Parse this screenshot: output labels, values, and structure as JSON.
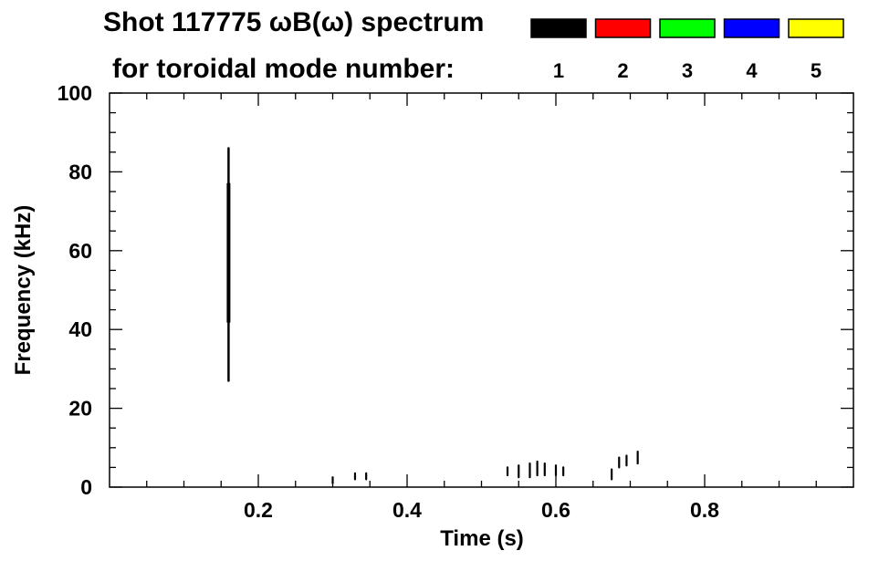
{
  "chart_data": {
    "type": "scatter",
    "title_line1": "Shot 117775 ωB(ω) spectrum",
    "title_line2": "for toroidal mode number:",
    "xlabel": "Time (s)",
    "ylabel": "Frequency (kHz)",
    "xlim": [
      0.0,
      1.0
    ],
    "ylim": [
      0,
      100
    ],
    "x_ticks": [
      {
        "value": 0.2,
        "label": "0.2"
      },
      {
        "value": 0.4,
        "label": "0.4"
      },
      {
        "value": 0.6,
        "label": "0.6"
      },
      {
        "value": 0.8,
        "label": "0.8"
      }
    ],
    "y_ticks": [
      {
        "value": 0,
        "label": "0"
      },
      {
        "value": 20,
        "label": "20"
      },
      {
        "value": 40,
        "label": "40"
      },
      {
        "value": 60,
        "label": "60"
      },
      {
        "value": 80,
        "label": "80"
      },
      {
        "value": 100,
        "label": "100"
      }
    ],
    "x_minor_step": 0.05,
    "y_minor_step": 5,
    "grid": false,
    "legend_placement": "top-right",
    "legend": [
      {
        "label": "1",
        "color": "#000000"
      },
      {
        "label": "2",
        "color": "#ff0000"
      },
      {
        "label": "3",
        "color": "#00ff00"
      },
      {
        "label": "4",
        "color": "#0000ff"
      },
      {
        "label": "5",
        "color": "#ffff00"
      }
    ],
    "series": [
      {
        "mode": 1,
        "color": "#000000",
        "segments": [
          {
            "t": 0.16,
            "f_start": 27,
            "f_end": 86
          },
          {
            "t": 0.3,
            "f_start": 1,
            "f_end": 2.5
          },
          {
            "t": 0.33,
            "f_start": 2,
            "f_end": 3.5
          },
          {
            "t": 0.345,
            "f_start": 2,
            "f_end": 3.5
          },
          {
            "t": 0.535,
            "f_start": 3,
            "f_end": 5
          },
          {
            "t": 0.55,
            "f_start": 2.5,
            "f_end": 5.5
          },
          {
            "t": 0.565,
            "f_start": 2.5,
            "f_end": 6
          },
          {
            "t": 0.575,
            "f_start": 3,
            "f_end": 6.5
          },
          {
            "t": 0.585,
            "f_start": 3,
            "f_end": 6
          },
          {
            "t": 0.6,
            "f_start": 3,
            "f_end": 5.5
          },
          {
            "t": 0.61,
            "f_start": 3,
            "f_end": 5
          },
          {
            "t": 0.675,
            "f_start": 2,
            "f_end": 4.5
          },
          {
            "t": 0.685,
            "f_start": 5,
            "f_end": 7.5
          },
          {
            "t": 0.695,
            "f_start": 5.5,
            "f_end": 8
          },
          {
            "t": 0.71,
            "f_start": 6,
            "f_end": 9
          }
        ]
      }
    ]
  },
  "colors": {
    "background": "#ffffff",
    "axis": "#000000"
  }
}
